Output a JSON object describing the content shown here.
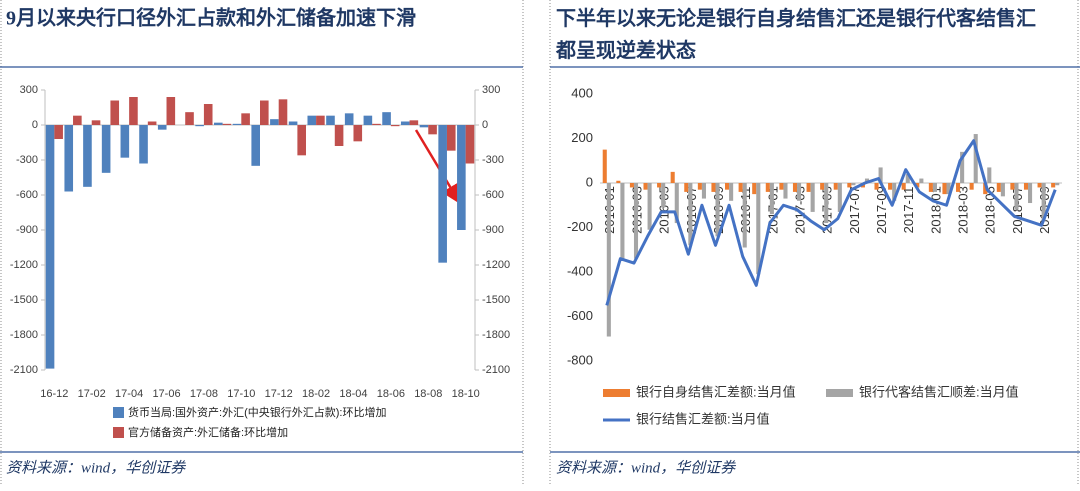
{
  "titles": [
    "9月以来央行口径外汇占款和外汇储备加速下滑",
    "下半年以来无论是银行自身结售汇还是银行代客结售汇都呈现逆差状态"
  ],
  "sources": [
    "资料来源：wind，华创证券",
    "资料来源：wind，华创证券"
  ],
  "chart_data": [
    {
      "type": "bar",
      "categories": [
        "16-12",
        null,
        "17-02",
        null,
        "17-04",
        null,
        "17-06",
        null,
        "17-08",
        null,
        "17-10",
        null,
        "17-12",
        null,
        "18-02",
        null,
        "18-04",
        null,
        "18-06",
        null,
        "18-08",
        null,
        "18-10"
      ],
      "series": [
        {
          "name": "货币当局:国外资产:外汇(中央银行外汇占款):环比增加",
          "color": "#4f81bd",
          "values": [
            -2088,
            -570,
            -530,
            -410,
            -280,
            -330,
            -40,
            0,
            -10,
            20,
            10,
            -350,
            50,
            30,
            80,
            80,
            100,
            80,
            110,
            30,
            -20,
            -1180,
            -900
          ]
        },
        {
          "name": "官方储备资产:外汇储备:环比增加",
          "color": "#c0504d",
          "values": [
            -120,
            80,
            40,
            210,
            240,
            30,
            240,
            110,
            180,
            10,
            100,
            210,
            220,
            -260,
            80,
            -180,
            -140,
            10,
            -10,
            40,
            -80,
            -220,
            -330
          ]
        }
      ],
      "ylim": [
        -2100,
        300
      ],
      "yticks": [
        300,
        0,
        -300,
        -600,
        -900,
        -1200,
        -1500,
        -1800,
        -2100
      ],
      "y2lim": [
        -2100,
        300
      ],
      "y2ticks": [
        300,
        0,
        -300,
        -600,
        -900,
        -1200,
        -1500,
        -1800,
        -2100
      ],
      "grid": false
    },
    {
      "type": "bar",
      "categories": [
        "2016-01",
        null,
        "2016-03",
        null,
        "2016-05",
        null,
        "2016-07",
        null,
        "2016-09",
        null,
        "2016-11",
        null,
        "2017-01",
        null,
        "2017-03",
        null,
        "2017-05",
        null,
        "2017-07",
        null,
        "2017-09",
        null,
        "2017-11",
        null,
        "2018-01",
        null,
        "2018-03",
        null,
        "2018-05",
        null,
        "2018-07",
        null,
        "2018-09",
        null
      ],
      "series": [
        {
          "name": "银行自身结售汇差额:当月值",
          "color": "#ed7d31",
          "type": "bar",
          "values": [
            150,
            10,
            -20,
            -30,
            -20,
            50,
            -40,
            -30,
            -40,
            -30,
            -40,
            -50,
            -40,
            -30,
            -40,
            -40,
            -30,
            -30,
            -20,
            -20,
            -30,
            -30,
            -30,
            -20,
            -40,
            -50,
            -40,
            -30,
            -50,
            -40,
            -30,
            -30,
            -20,
            -20
          ]
        },
        {
          "name": "银行代客结售汇顺差:当月值",
          "color": "#a5a5a5",
          "type": "bar",
          "values": [
            -690,
            -350,
            -340,
            -210,
            -110,
            -180,
            -280,
            -70,
            -240,
            -80,
            -290,
            -410,
            -140,
            -70,
            -80,
            -130,
            -180,
            -130,
            -10,
            20,
            70,
            -80,
            40,
            20,
            -40,
            -50,
            140,
            220,
            70,
            -60,
            -120,
            -90,
            -170,
            -10
          ]
        },
        {
          "name": "银行结售汇差额:当月值",
          "color": "#4472c4",
          "type": "line",
          "values": [
            -550,
            -340,
            -360,
            -240,
            -130,
            -130,
            -320,
            -100,
            -280,
            -100,
            -330,
            -460,
            -180,
            -100,
            -120,
            -170,
            -210,
            -160,
            -30,
            0,
            20,
            -100,
            60,
            -40,
            -80,
            -100,
            100,
            190,
            -30,
            -90,
            -150,
            -170,
            -190,
            -30
          ]
        }
      ],
      "ylim": [
        -800,
        400
      ],
      "yticks": [
        400,
        200,
        0,
        -200,
        -400,
        -600,
        -800
      ],
      "grid": false
    }
  ]
}
